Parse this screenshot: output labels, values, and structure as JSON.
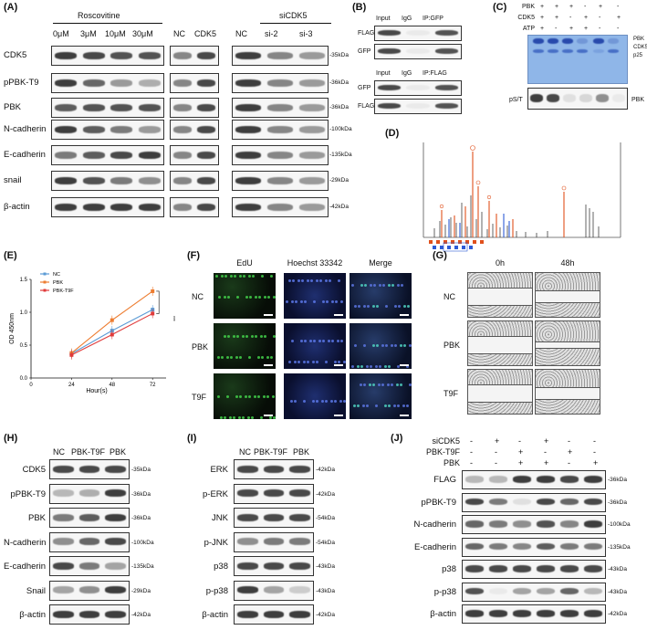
{
  "panels": {
    "A": {
      "label": "(A)",
      "group_roscovitine": "Roscovitine",
      "group_sicdk5": "siCDK5",
      "doses": [
        "0μM",
        "3μM",
        "10μM",
        "30μM"
      ],
      "oe": [
        "NC",
        "CDK5"
      ],
      "si": [
        "NC",
        "si-2",
        "si-3"
      ],
      "rows": [
        "CDK5",
        "pPBK-T9",
        "PBK",
        "N-cadherin",
        "E-cadherin",
        "snail",
        "β-actin"
      ],
      "kda": [
        "-35kDa",
        "-36kDa",
        "-36kDa",
        "-100kDa",
        "-135kDa",
        "-29kDa",
        "-42kDa"
      ]
    },
    "B": {
      "label": "(B)",
      "top_header": [
        "Input",
        "IgG",
        "IP:GFP"
      ],
      "top_rows": [
        "FLAG",
        "GFP"
      ],
      "bottom_header": [
        "Input",
        "IgG",
        "IP:FLAG"
      ],
      "bottom_rows": [
        "GFP",
        "FLAG"
      ]
    },
    "C": {
      "label": "(C)",
      "conditions": [
        "PBK",
        "CDK5",
        "ATP"
      ],
      "signs": [
        [
          "+",
          "+",
          "+",
          "-",
          "+",
          "-"
        ],
        [
          "+",
          "+",
          "-",
          "+",
          "-",
          "+"
        ],
        [
          "+",
          "-",
          "+",
          "+",
          "-",
          "-"
        ]
      ],
      "markers": [
        "PBK",
        "CDK5",
        "p25"
      ],
      "bottom_left": "pS/T",
      "bottom_right": "PBK"
    },
    "D": {
      "label": "(D)"
    },
    "E": {
      "label": "(E)",
      "ylabel": "OD 450nm",
      "xlabel": "Hour(s)",
      "sig": "***"
    },
    "F": {
      "label": "(F)",
      "cols": [
        "EdU",
        "Hoechst 33342",
        "Merge"
      ],
      "rows": [
        "NC",
        "PBK",
        "T9F"
      ]
    },
    "G": {
      "label": "(G)",
      "cols": [
        "0h",
        "48h"
      ],
      "rows": [
        "NC",
        "PBK",
        "T9F"
      ]
    },
    "H": {
      "label": "(H)",
      "lanes": [
        "NC",
        "PBK-T9F",
        "PBK"
      ],
      "rows": [
        "CDK5",
        "pPBK-T9",
        "PBK",
        "N-cadherin",
        "E-cadherin",
        "Snail",
        "β-actin"
      ],
      "kda": [
        "-35kDa",
        "-36kDa",
        "-36kDa",
        "-100kDa",
        "-135kDa",
        "-29kDa",
        "-42kDa"
      ]
    },
    "I": {
      "label": "(I)",
      "lanes": [
        "NC",
        "PBK-T9F",
        "PBK"
      ],
      "rows": [
        "ERK",
        "p-ERK",
        "JNK",
        "p-JNK",
        "p38",
        "p-p38",
        "β-actin"
      ],
      "kda": [
        "-42kDa",
        "-42kDa",
        "-54kDa",
        "-54kDa",
        "-43kDa",
        "-43kDa",
        "-42kDa"
      ]
    },
    "J": {
      "label": "(J)",
      "conditions": [
        "siCDK5",
        "PBK-T9F",
        "PBK"
      ],
      "signs": [
        [
          "-",
          "+",
          "-",
          "+",
          "-",
          "-"
        ],
        [
          "-",
          "-",
          "+",
          "-",
          "+",
          "-"
        ],
        [
          "-",
          "-",
          "+",
          "+",
          "-",
          "+"
        ]
      ],
      "rows": [
        "FLAG",
        "pPBK-T9",
        "N-cadherin",
        "E-cadherin",
        "p38",
        "p-p38",
        "β-actin"
      ],
      "kda": [
        "-36kDa",
        "-36kDa",
        "-100kDa",
        "-135kDa",
        "-43kDa",
        "-43kDa",
        "-42kDa"
      ]
    }
  },
  "chart_data": {
    "type": "line",
    "title": "",
    "xlabel": "Hour(s)",
    "ylabel": "OD 450nm",
    "x": [
      24,
      48,
      72
    ],
    "xticks": [
      0,
      24,
      48,
      72
    ],
    "yticks": [
      0.0,
      0.5,
      1.0,
      1.5
    ],
    "ylim": [
      0,
      1.5
    ],
    "xlim": [
      0,
      80
    ],
    "legend_position": "top-left",
    "series": [
      {
        "name": "NC",
        "values": [
          0.37,
          0.72,
          1.04
        ],
        "color": "#5b9bd5"
      },
      {
        "name": "PBK",
        "values": [
          0.38,
          0.88,
          1.32
        ],
        "color": "#ed7d31"
      },
      {
        "name": "PBK-T9F",
        "values": [
          0.35,
          0.66,
          0.98
        ],
        "color": "#e03a3a"
      }
    ]
  }
}
